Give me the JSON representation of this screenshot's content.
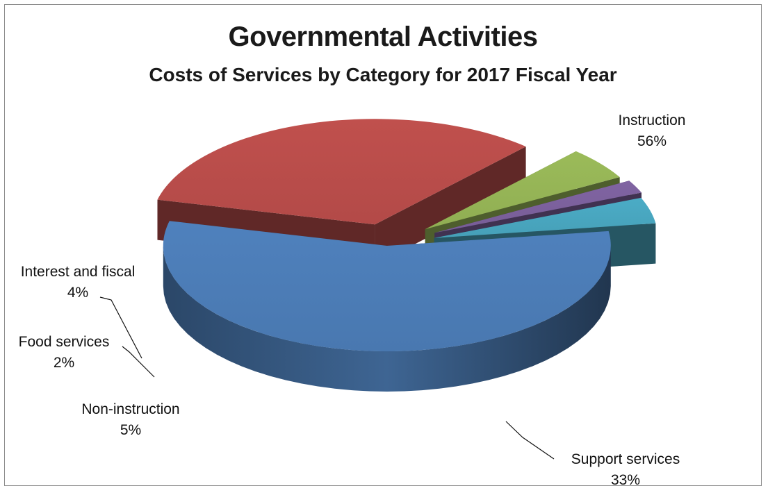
{
  "chart_data": {
    "type": "pie",
    "title": "Governmental Activities",
    "subtitle": "Costs of Services by Category for 2017 Fiscal Year",
    "slices": [
      {
        "label": "Instruction",
        "value": 56,
        "value_label": "56%",
        "color": "#4F81BD"
      },
      {
        "label": "Support services",
        "value": 33,
        "value_label": "33%",
        "color": "#C0504D"
      },
      {
        "label": "Non-instruction",
        "value": 5,
        "value_label": "5%",
        "color": "#9BBB59"
      },
      {
        "label": "Food services",
        "value": 2,
        "value_label": "2%",
        "color": "#8064A2"
      },
      {
        "label": "Interest and fiscal",
        "value": 4,
        "value_label": "4%",
        "color": "#4BACC6"
      }
    ],
    "legend": "none",
    "style": "exploded-3d-pie"
  }
}
